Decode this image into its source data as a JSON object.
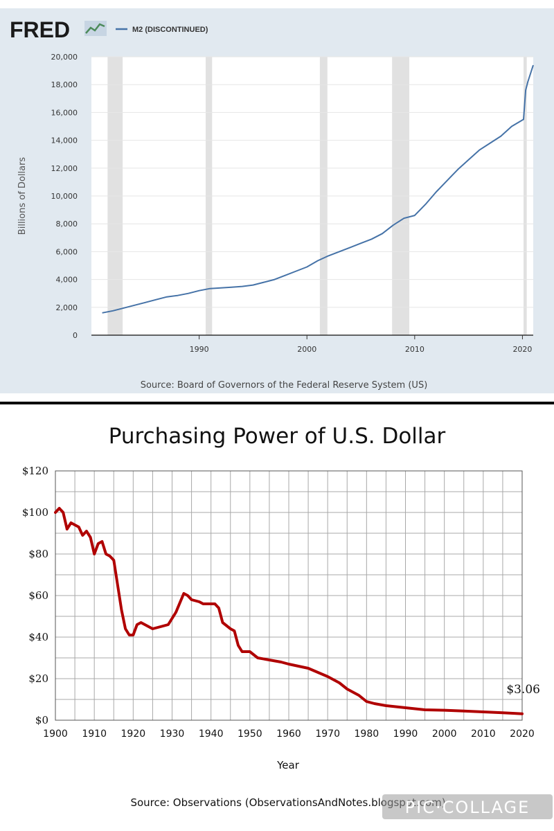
{
  "chart_data": [
    {
      "type": "line",
      "brand": "FRED",
      "title": "",
      "series": [
        {
          "name": "M2 (DISCONTINUED)",
          "color": "#4572a7",
          "x": [
            1981,
            1982,
            1983,
            1984,
            1985,
            1986,
            1987,
            1988,
            1989,
            1990,
            1991,
            1992,
            1993,
            1994,
            1995,
            1996,
            1997,
            1998,
            1999,
            2000,
            2001,
            2002,
            2003,
            2004,
            2005,
            2006,
            2007,
            2008,
            2009,
            2010,
            2011,
            2012,
            2013,
            2014,
            2015,
            2016,
            2017,
            2018,
            2019,
            2020.1,
            2020.3,
            2020.5,
            2021.0
          ],
          "values": [
            1600,
            1750,
            1950,
            2150,
            2350,
            2550,
            2750,
            2850,
            3000,
            3200,
            3350,
            3400,
            3450,
            3500,
            3600,
            3800,
            4000,
            4300,
            4600,
            4900,
            5350,
            5700,
            6000,
            6300,
            6600,
            6900,
            7300,
            7900,
            8400,
            8600,
            9400,
            10300,
            11100,
            11900,
            12600,
            13300,
            13800,
            14300,
            15000,
            15500,
            17600,
            18200,
            19400
          ]
        }
      ],
      "xlim": [
        1980,
        2021
      ],
      "ylim": [
        0,
        20000
      ],
      "xticks": [
        1990,
        2000,
        2010,
        2020
      ],
      "yticks": [
        "0",
        "2,000",
        "4,000",
        "6,000",
        "8,000",
        "10,000",
        "12,000",
        "14,000",
        "16,000",
        "18,000",
        "20,000"
      ],
      "ylabel": "Billions of Dollars",
      "recessions": [
        [
          1981.5,
          1982.9
        ],
        [
          1990.6,
          1991.2
        ],
        [
          2001.2,
          2001.9
        ],
        [
          2007.9,
          2009.5
        ],
        [
          2020.1,
          2020.4
        ]
      ],
      "grid": true,
      "legend": "top-left",
      "source": "Source: Board of Governors of the Federal Reserve System (US)"
    },
    {
      "type": "line",
      "title": "Purchasing Power of U.S. Dollar",
      "xlabel": "Year",
      "ylabel": "",
      "series": [
        {
          "color": "#b00000",
          "x": [
            1900,
            1901,
            1902,
            1903,
            1904,
            1905,
            1906,
            1907,
            1908,
            1909,
            1910,
            1911,
            1912,
            1913,
            1914,
            1915,
            1916,
            1917,
            1918,
            1919,
            1920,
            1921,
            1922,
            1923,
            1925,
            1927,
            1929,
            1931,
            1933,
            1934,
            1935,
            1937,
            1938,
            1940,
            1941,
            1942,
            1943,
            1945,
            1946,
            1947,
            1948,
            1950,
            1952,
            1955,
            1958,
            1960,
            1965,
            1970,
            1973,
            1975,
            1978,
            1980,
            1982,
            1985,
            1990,
            1995,
            2000,
            2005,
            2010,
            2015,
            2018,
            2020
          ],
          "values": [
            100,
            102,
            100,
            92,
            95,
            94,
            93,
            89,
            91,
            88,
            80,
            85,
            86,
            80,
            79,
            77,
            65,
            53,
            44,
            41,
            41,
            46,
            47,
            46,
            44,
            45,
            46,
            52,
            61,
            60,
            58,
            57,
            56,
            56,
            56,
            54,
            47,
            44,
            43,
            36,
            33,
            33,
            30,
            29,
            28,
            27,
            25,
            21,
            18,
            15,
            12,
            9,
            8,
            7,
            6,
            5,
            4.8,
            4.4,
            4.0,
            3.6,
            3.3,
            3.06
          ]
        }
      ],
      "xlim": [
        1900,
        2020
      ],
      "ylim": [
        0,
        120
      ],
      "xticks": [
        "1900",
        "1910",
        "1920",
        "1930",
        "1940",
        "1950",
        "1960",
        "1970",
        "1980",
        "1990",
        "2000",
        "2010",
        "2020"
      ],
      "yticks": [
        "$0",
        "$20",
        "$40",
        "$60",
        "$80",
        "$100",
        "$120"
      ],
      "grid": true,
      "annotation": "$3.06",
      "source": "Source: Observations (ObservationsAndNotes.blogspot.com)"
    }
  ],
  "watermark": {
    "text": "PIC·COLLAGE",
    "color": "#ffffff"
  }
}
